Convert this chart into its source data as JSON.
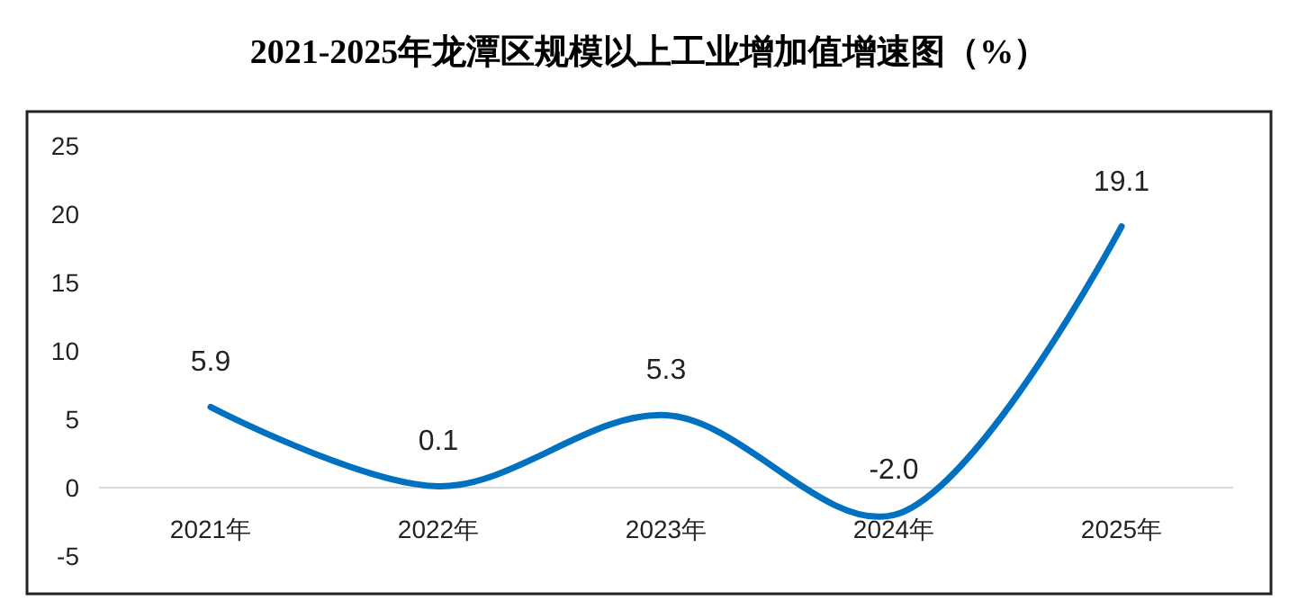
{
  "chart_data": {
    "type": "line",
    "title": "2021-2025年龙潭区规模以上工业增加值增速图（%）",
    "categories": [
      "2021年",
      "2022年",
      "2023年",
      "2024年",
      "2025年"
    ],
    "series": [
      {
        "color": "#0070c0",
        "values": [
          5.9,
          0.1,
          5.3,
          -2.0,
          19.1
        ]
      }
    ],
    "value_labels": [
      "5.9",
      "0.1",
      "5.3",
      "-2.0",
      "19.1"
    ],
    "ylim": [
      -5,
      25
    ],
    "yticks": [
      -5,
      0,
      5,
      10,
      15,
      20,
      25
    ],
    "grid": false,
    "marker": "none",
    "line_style": "solid"
  }
}
